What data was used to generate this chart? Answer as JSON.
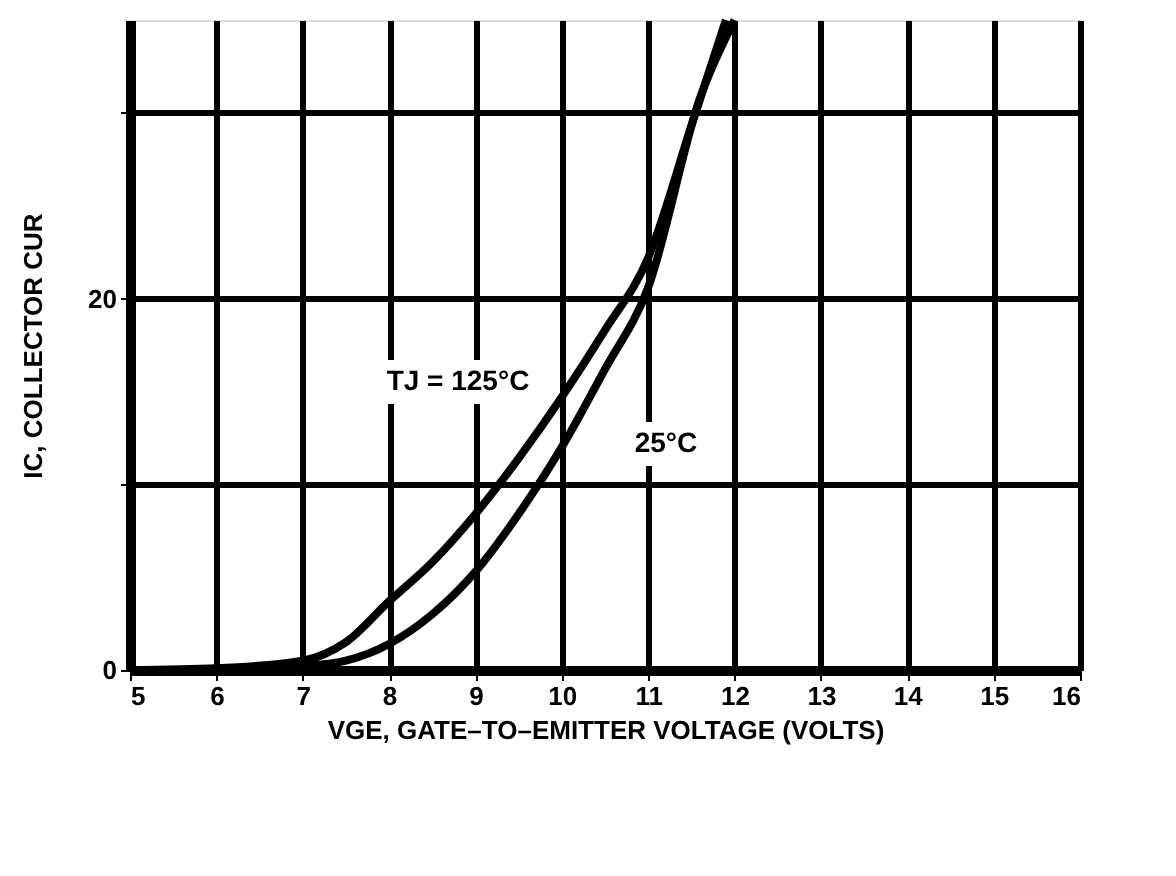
{
  "chart_data": {
    "type": "line",
    "xlabel": "VGE, GATE–TO–EMITTER VOLTAGE (VOLTS)",
    "ylabel": "IC, COLLECTOR CUR",
    "series": [
      {
        "color": "#000000",
        "x": [
          5,
          6,
          7,
          7.5,
          8,
          8.5,
          9,
          9.5,
          10,
          10.5,
          11,
          11.5,
          11.9
        ],
        "values": [
          0,
          0.1,
          0.5,
          1.5,
          3.7,
          5.8,
          8.4,
          11.4,
          14.7,
          18.3,
          22.2,
          29.3,
          35
        ]
      },
      {
        "color": "#000000",
        "x": [
          6,
          7,
          7.5,
          8,
          8.5,
          9,
          9.5,
          10,
          10.5,
          11,
          11.6,
          12
        ],
        "values": [
          0,
          0.2,
          0.5,
          1.4,
          3.0,
          5.3,
          8.4,
          12.0,
          16.2,
          20.6,
          30.8,
          35
        ]
      }
    ],
    "xlim": [
      5,
      16
    ],
    "xticks": [
      5,
      6,
      7,
      8,
      9,
      10,
      11,
      12,
      13,
      14,
      15,
      16
    ],
    "ylim": [
      0,
      35
    ],
    "yticks": [
      0,
      {
        "value": 10,
        "label": null
      },
      20,
      {
        "value": 30,
        "label": null
      }
    ],
    "annotations": [
      "TJ = 125°C",
      "25°C"
    ],
    "grid": true,
    "marker": "none",
    "line_style": "solid"
  }
}
